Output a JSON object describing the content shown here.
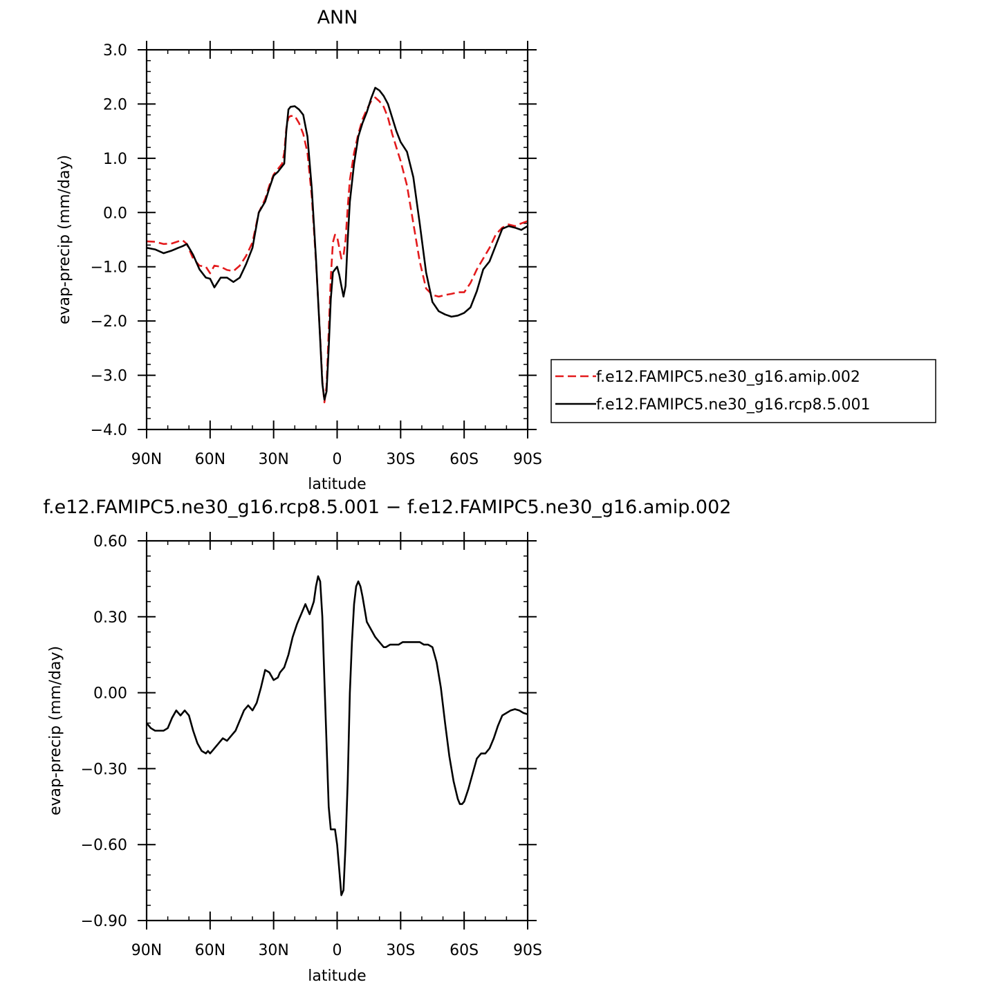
{
  "chart_data": [
    {
      "type": "line",
      "title": "ANN",
      "xlabel": "latitude",
      "ylabel": "evap-precip (mm/day)",
      "xlim": [
        90,
        -90
      ],
      "ylim": [
        -4.0,
        3.0
      ],
      "xticks": [
        {
          "value": 90,
          "label": "90N"
        },
        {
          "value": 60,
          "label": "60N"
        },
        {
          "value": 30,
          "label": "30N"
        },
        {
          "value": 0,
          "label": "0"
        },
        {
          "value": -30,
          "label": "30S"
        },
        {
          "value": -60,
          "label": "60S"
        },
        {
          "value": -90,
          "label": "90S"
        }
      ],
      "yticks": [
        {
          "value": 3.0,
          "label": "3.0"
        },
        {
          "value": 2.0,
          "label": "2.0"
        },
        {
          "value": 1.0,
          "label": "1.0"
        },
        {
          "value": 0.0,
          "label": "0.0"
        },
        {
          "value": -1.0,
          "label": "−1.0"
        },
        {
          "value": -2.0,
          "label": "−2.0"
        },
        {
          "value": -3.0,
          "label": "−3.0"
        },
        {
          "value": -4.0,
          "label": "−4.0"
        }
      ],
      "legend_position": "right",
      "series": [
        {
          "name": "f.e12.FAMIPC5.ne30_g16.amip.002",
          "color": "#e31a1c",
          "dash": "dashed",
          "x": [
            90,
            86,
            82,
            78,
            75,
            73,
            71,
            68,
            65,
            62,
            60,
            58,
            55,
            52,
            49,
            46,
            43,
            40,
            37,
            34,
            32,
            30,
            28,
            27,
            26,
            25,
            24,
            23,
            22,
            20,
            18,
            16,
            14,
            12,
            10,
            8,
            7,
            6,
            5,
            4,
            3,
            2,
            1,
            0,
            -1,
            -2,
            -3,
            -4,
            -5,
            -6,
            -8,
            -10,
            -12,
            -14,
            -16,
            -18,
            -20,
            -22,
            -24,
            -26,
            -28,
            -30,
            -33,
            -36,
            -39,
            -42,
            -45,
            -48,
            -51,
            -54,
            -57,
            -60,
            -63,
            -66,
            -69,
            -72,
            -75,
            -78,
            -81,
            -84,
            -87,
            -90
          ],
          "values": [
            -0.53,
            -0.54,
            -0.58,
            -0.57,
            -0.53,
            -0.51,
            -0.58,
            -0.85,
            -0.98,
            -1.0,
            -1.12,
            -0.98,
            -1.0,
            -1.06,
            -1.08,
            -0.98,
            -0.8,
            -0.55,
            0.0,
            0.25,
            0.5,
            0.7,
            0.8,
            0.85,
            0.9,
            1.1,
            1.55,
            1.75,
            1.78,
            1.78,
            1.65,
            1.45,
            1.1,
            0.3,
            -0.9,
            -2.3,
            -3.1,
            -3.5,
            -3.2,
            -2.2,
            -1.2,
            -0.55,
            -0.41,
            -0.45,
            -0.65,
            -0.85,
            -0.8,
            -0.5,
            0.1,
            0.6,
            1.1,
            1.45,
            1.72,
            1.9,
            2.05,
            2.12,
            2.05,
            1.95,
            1.75,
            1.45,
            1.2,
            0.95,
            0.5,
            -0.2,
            -0.9,
            -1.4,
            -1.52,
            -1.55,
            -1.52,
            -1.5,
            -1.47,
            -1.47,
            -1.3,
            -1.05,
            -0.85,
            -0.65,
            -0.4,
            -0.28,
            -0.22,
            -0.25,
            -0.2,
            -0.16
          ]
        },
        {
          "name": "f.e12.FAMIPC5.ne30_g16.rcp8.5.001",
          "color": "#000000",
          "dash": "solid",
          "x": [
            90,
            86,
            82,
            78,
            75,
            73,
            71,
            68,
            65,
            62,
            60,
            58,
            55,
            52,
            49,
            46,
            43,
            40,
            37,
            34,
            32,
            30,
            28,
            27,
            26,
            25,
            24,
            23,
            22,
            20,
            18,
            16,
            14,
            12,
            10,
            8,
            7,
            6,
            5,
            4,
            3,
            2,
            1,
            0,
            -1,
            -2,
            -3,
            -4,
            -5,
            -6,
            -8,
            -10,
            -12,
            -14,
            -16,
            -18,
            -20,
            -22,
            -24,
            -26,
            -28,
            -30,
            -33,
            -36,
            -39,
            -42,
            -45,
            -48,
            -51,
            -54,
            -57,
            -60,
            -63,
            -66,
            -69,
            -72,
            -75,
            -78,
            -81,
            -84,
            -87,
            -90
          ],
          "values": [
            -0.65,
            -0.68,
            -0.75,
            -0.7,
            -0.65,
            -0.62,
            -0.58,
            -0.78,
            -1.05,
            -1.2,
            -1.22,
            -1.38,
            -1.2,
            -1.2,
            -1.28,
            -1.2,
            -0.95,
            -0.65,
            0.0,
            0.2,
            0.45,
            0.68,
            0.75,
            0.8,
            0.85,
            0.9,
            1.5,
            1.9,
            1.95,
            1.96,
            1.9,
            1.8,
            1.4,
            0.45,
            -0.85,
            -2.35,
            -3.15,
            -3.45,
            -3.3,
            -2.5,
            -1.6,
            -1.1,
            -1.05,
            -1.0,
            -1.15,
            -1.35,
            -1.55,
            -1.35,
            -0.5,
            0.2,
            0.9,
            1.4,
            1.65,
            1.85,
            2.1,
            2.3,
            2.25,
            2.15,
            2.0,
            1.75,
            1.5,
            1.3,
            1.12,
            0.65,
            -0.2,
            -1.1,
            -1.65,
            -1.82,
            -1.88,
            -1.92,
            -1.9,
            -1.85,
            -1.75,
            -1.45,
            -1.05,
            -0.9,
            -0.6,
            -0.3,
            -0.25,
            -0.28,
            -0.32,
            -0.25
          ]
        }
      ]
    },
    {
      "type": "line",
      "title": "f.e12.FAMIPC5.ne30_g16.rcp8.5.001  −  f.e12.FAMIPC5.ne30_g16.amip.002",
      "xlabel": "latitude",
      "ylabel": "evap-precip (mm/day)",
      "xlim": [
        90,
        -90
      ],
      "ylim": [
        -0.9,
        0.6
      ],
      "xticks": [
        {
          "value": 90,
          "label": "90N"
        },
        {
          "value": 60,
          "label": "60N"
        },
        {
          "value": 30,
          "label": "30N"
        },
        {
          "value": 0,
          "label": "0"
        },
        {
          "value": -30,
          "label": "30S"
        },
        {
          "value": -60,
          "label": "60S"
        },
        {
          "value": -90,
          "label": "90S"
        }
      ],
      "yticks": [
        {
          "value": 0.6,
          "label": "0.60"
        },
        {
          "value": 0.3,
          "label": "0.30"
        },
        {
          "value": 0.0,
          "label": "0.00"
        },
        {
          "value": -0.3,
          "label": "−0.30"
        },
        {
          "value": -0.6,
          "label": "−0.60"
        },
        {
          "value": -0.9,
          "label": "−0.90"
        }
      ],
      "series": [
        {
          "name": "",
          "color": "#000000",
          "dash": "solid",
          "x": [
            90,
            88,
            86,
            84,
            82,
            80,
            78,
            76,
            75,
            74,
            73,
            72,
            71,
            70,
            68,
            66,
            64,
            62,
            61,
            60,
            59,
            58,
            56,
            54,
            52,
            50,
            48,
            46,
            44,
            42,
            41,
            40,
            38,
            36,
            34,
            32,
            30,
            28,
            27,
            25,
            23,
            21,
            19,
            17,
            15,
            13,
            11,
            10,
            9,
            8,
            7,
            6,
            5,
            4,
            3,
            2,
            1,
            0,
            -1,
            -2,
            -3,
            -4,
            -5,
            -6,
            -7,
            -8,
            -9,
            -10,
            -11,
            -12,
            -14,
            -16,
            -18,
            -20,
            -22,
            -23,
            -25,
            -27,
            -29,
            -31,
            -33,
            -35,
            -37,
            -39,
            -41,
            -43,
            -45,
            -47,
            -49,
            -51,
            -53,
            -55,
            -57,
            -58,
            -59,
            -60,
            -62,
            -64,
            -66,
            -68,
            -70,
            -72,
            -74,
            -76,
            -78,
            -80,
            -82,
            -84,
            -86,
            -88,
            -90
          ],
          "values": [
            -0.12,
            -0.14,
            -0.15,
            -0.15,
            -0.15,
            -0.14,
            -0.1,
            -0.07,
            -0.08,
            -0.09,
            -0.08,
            -0.07,
            -0.08,
            -0.09,
            -0.15,
            -0.2,
            -0.23,
            -0.24,
            -0.23,
            -0.24,
            -0.23,
            -0.22,
            -0.2,
            -0.18,
            -0.19,
            -0.17,
            -0.15,
            -0.11,
            -0.07,
            -0.05,
            -0.06,
            -0.07,
            -0.04,
            0.02,
            0.09,
            0.08,
            0.05,
            0.06,
            0.08,
            0.1,
            0.15,
            0.22,
            0.27,
            0.31,
            0.35,
            0.31,
            0.36,
            0.42,
            0.46,
            0.44,
            0.3,
            0.05,
            -0.2,
            -0.45,
            -0.54,
            -0.54,
            -0.54,
            -0.6,
            -0.7,
            -0.8,
            -0.78,
            -0.6,
            -0.35,
            0.0,
            0.2,
            0.35,
            0.42,
            0.44,
            0.42,
            0.38,
            0.28,
            0.25,
            0.22,
            0.2,
            0.18,
            0.18,
            0.19,
            0.19,
            0.19,
            0.2,
            0.2,
            0.2,
            0.2,
            0.2,
            0.19,
            0.19,
            0.18,
            0.12,
            0.02,
            -0.12,
            -0.25,
            -0.35,
            -0.42,
            -0.44,
            -0.44,
            -0.43,
            -0.38,
            -0.32,
            -0.26,
            -0.24,
            -0.24,
            -0.22,
            -0.18,
            -0.13,
            -0.09,
            -0.08,
            -0.07,
            -0.065,
            -0.07,
            -0.08,
            -0.085
          ]
        }
      ]
    }
  ]
}
